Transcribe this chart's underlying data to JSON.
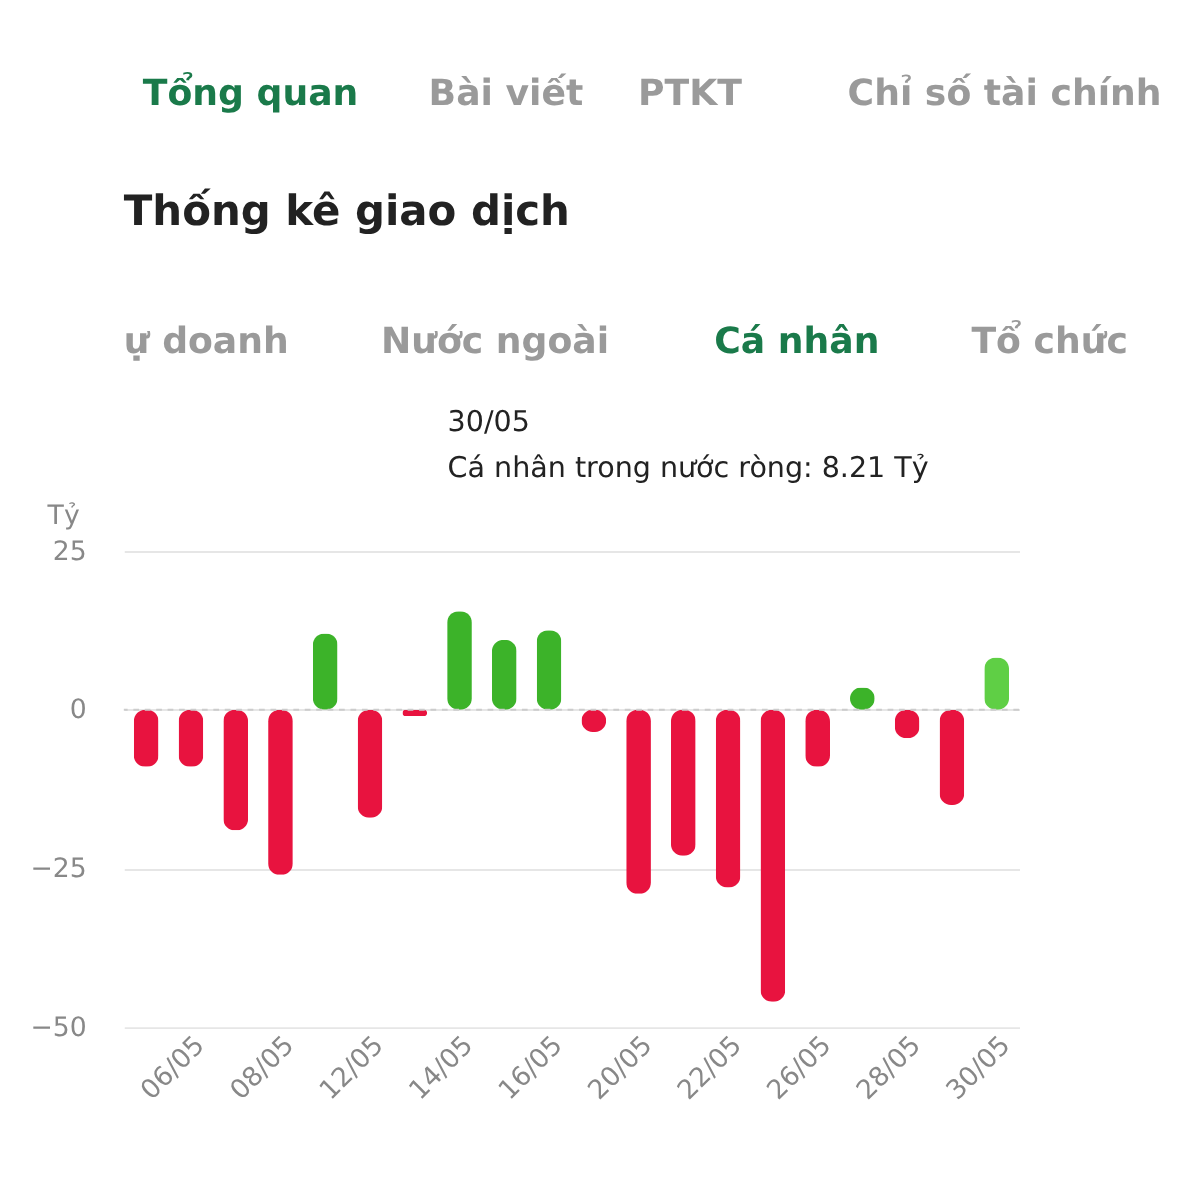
{
  "chart_data": {
    "type": "bar",
    "title": "Thống kê giao dịch",
    "ylabel": "Tỷ",
    "categories": [
      null,
      "06/05",
      null,
      "08/05",
      null,
      "12/05",
      null,
      "14/05",
      null,
      "16/05",
      null,
      "20/05",
      null,
      "22/05",
      null,
      "26/05",
      null,
      "28/05",
      null,
      "30/05"
    ],
    "values": [
      -9,
      -9,
      -19,
      -26,
      12,
      -17,
      -1,
      15.5,
      11,
      12.5,
      -3.5,
      -29,
      -23,
      -28,
      -46,
      -9,
      3.5,
      -4.5,
      -15,
      8.21
    ],
    "colors": [
      "#e8133f",
      "#e8133f",
      "#e8133f",
      "#e8133f",
      "#3cb329",
      "#e8133f",
      "#e8133f",
      "#3cb329",
      "#3cb329",
      "#3cb329",
      "#e8133f",
      "#e8133f",
      "#e8133f",
      "#e8133f",
      "#e8133f",
      "#e8133f",
      "#3cb329",
      "#e8133f",
      "#e8133f",
      "#5fcf45"
    ],
    "ref_lines": [
      {
        "axis": "y",
        "value": 0,
        "color": "#cccccc",
        "line_style": "dashed"
      }
    ],
    "ylim": [
      -50,
      25
    ],
    "yticks": [
      -50,
      -25,
      0,
      25
    ],
    "grid": "y",
    "annotations": [
      "Tổng quan",
      "Bài viết",
      "PTKT",
      "Chỉ số tài chính",
      "ự doanh",
      "Nước ngoài",
      "Cá nhân",
      "Tổ chức",
      "30/05",
      "Cá nhân trong nước ròng: 8.21 Tỷ"
    ]
  }
}
